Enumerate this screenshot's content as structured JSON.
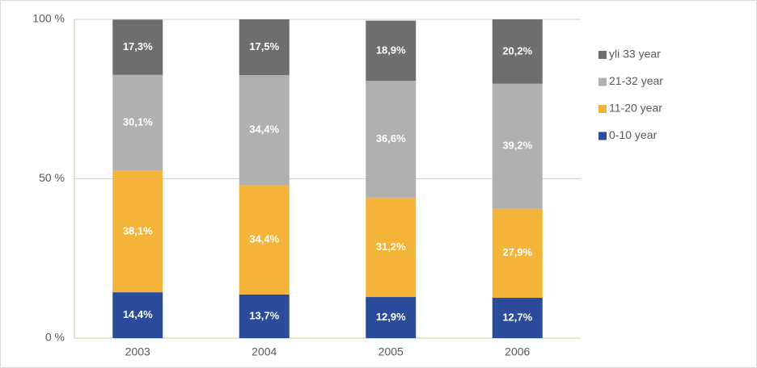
{
  "chart_data": {
    "type": "stacked_bar",
    "categories": [
      "2003",
      "2004",
      "2005",
      "2006"
    ],
    "series": [
      {
        "name": "0-10 year",
        "color": "#2b4c9b",
        "values": [
          14.4,
          13.7,
          12.9,
          12.7
        ],
        "value_labels": [
          "14,4%",
          "13,7%",
          "12,9%",
          "12,7%"
        ]
      },
      {
        "name": "11-20 year",
        "color": "#f4b43a",
        "values": [
          38.1,
          34.4,
          31.2,
          27.9
        ],
        "value_labels": [
          "38,1%",
          "34,4%",
          "31,2%",
          "27,9%"
        ]
      },
      {
        "name": "21-32 year",
        "color": "#b0b0b0",
        "values": [
          30.1,
          34.4,
          36.6,
          39.2
        ],
        "value_labels": [
          "30,1%",
          "34,4%",
          "36,6%",
          "39,2%"
        ]
      },
      {
        "name": "yli 33 year",
        "color": "#6e6e6e",
        "values": [
          17.3,
          17.5,
          18.9,
          20.2
        ],
        "value_labels": [
          "17,3%",
          "17,5%",
          "18,9%",
          "20,2%"
        ]
      }
    ],
    "ylim": [
      0,
      100
    ],
    "yticks": [
      {
        "value": 0,
        "label": "0 %"
      },
      {
        "value": 50,
        "label": "50 %"
      },
      {
        "value": 100,
        "label": "100 %"
      }
    ],
    "grid": true,
    "legend": "right"
  }
}
